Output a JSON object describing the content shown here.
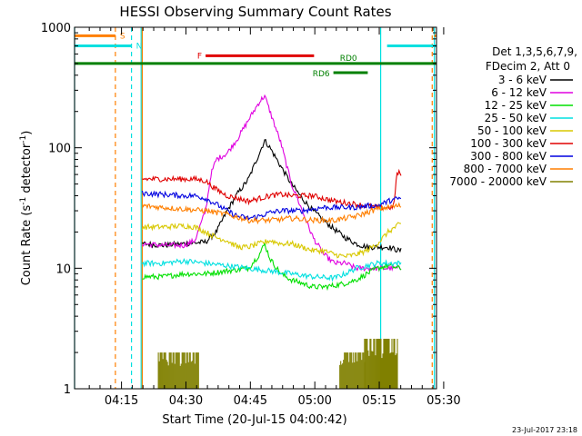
{
  "chart_data": {
    "type": "line",
    "title": "HESSI Observing Summary Count Rates",
    "xlabel": "Start Time (20-Jul-15 04:00:42)",
    "ylabel_main": "Count Rate (s",
    "ylabel_sup1": "-1",
    "ylabel_mid": " detector",
    "ylabel_sup2": "-1",
    "ylabel_end": ")",
    "yscale": "log",
    "ylim": [
      1,
      1000
    ],
    "xlim_minutes": [
      4.8,
      38.5
    ],
    "x_tick_labels": [
      "04:15",
      "04:30",
      "04:45",
      "05:00",
      "05:15",
      "05:30"
    ],
    "x_ticks_minutes": [
      9,
      15,
      21,
      27,
      33,
      39
    ],
    "y_tick_labels": [
      "1",
      "10",
      "100",
      "1000"
    ],
    "y_ticks": [
      1,
      10,
      100,
      1000
    ],
    "timestamp": "23-Jul-2017 23:18",
    "legend": {
      "header1": "Det 1,3,5,6,7,9,",
      "header2": "FDecim 2, Att 0",
      "entries": [
        {
          "label": "3 - 6 keV",
          "color": "#000000"
        },
        {
          "label": "6 - 12 keV",
          "color": "#e000e0"
        },
        {
          "label": "12 - 25 keV",
          "color": "#00e000"
        },
        {
          "label": "25 - 50 keV",
          "color": "#00e0e0"
        },
        {
          "label": "50 - 100 keV",
          "color": "#d8c800"
        },
        {
          "label": "100 - 300 keV",
          "color": "#e00000"
        },
        {
          "label": "300 - 800 keV",
          "color": "#0000e0"
        },
        {
          "label": "800 - 7000 keV",
          "color": "#ff7f00"
        },
        {
          "label": "7000 - 20000 keV",
          "color": "#808000"
        }
      ]
    },
    "flags": [
      {
        "label": "S",
        "color": "#ff7f00",
        "y": 850,
        "segments": [
          [
            4.8,
            8.6
          ],
          [
            38.3,
            38.5
          ]
        ]
      },
      {
        "label": "N",
        "color": "#00e0e0",
        "y": 700,
        "segments": [
          [
            4.8,
            10.1
          ],
          [
            33.9,
            38.5
          ]
        ]
      },
      {
        "label": "F",
        "color": "#e00000",
        "y": 580,
        "segments": [
          [
            17.0,
            27.1
          ]
        ]
      },
      {
        "label": "RD0",
        "color": "#008000",
        "y": 500,
        "segments": [
          [
            4.8,
            38.5
          ]
        ]
      },
      {
        "label": "RD6",
        "color": "#008000",
        "y": 420,
        "segments": [
          [
            28.9,
            32.1
          ]
        ]
      }
    ],
    "vertical_lines": [
      {
        "x": 4.8,
        "color": "#00e0e0",
        "dash": false
      },
      {
        "x": 8.6,
        "color": "#ff7f00",
        "dash": true
      },
      {
        "x": 10.1,
        "color": "#00e0e0",
        "dash": true
      },
      {
        "x": 11.0,
        "color": "#00e0e0",
        "dash": false
      },
      {
        "x": 11.1,
        "color": "#ff7f00",
        "dash": false
      },
      {
        "x": 33.3,
        "color": "#00e0e0",
        "dash": false
      },
      {
        "x": 38.1,
        "color": "#ff7f00",
        "dash": true
      },
      {
        "x": 38.3,
        "color": "#00e0e0",
        "dash": false
      }
    ],
    "series": [
      {
        "name": "3 - 6 keV",
        "color": "#000000",
        "x": [
          11.1,
          13,
          15,
          17,
          18,
          19,
          20,
          21,
          22,
          22.5,
          23,
          24,
          25,
          26,
          27,
          28,
          29,
          30,
          31,
          32,
          33,
          34,
          35,
          35.2
        ],
        "y": [
          16,
          15.5,
          16,
          16.5,
          20,
          30,
          42,
          55,
          90,
          115,
          100,
          70,
          50,
          38,
          30,
          25,
          21,
          18,
          16,
          15,
          15,
          15,
          14,
          14
        ]
      },
      {
        "name": "6 - 12 keV",
        "color": "#e000e0",
        "x": [
          11.1,
          13,
          15,
          16,
          17,
          17.5,
          18,
          19,
          20,
          21,
          22,
          22.5,
          23,
          24,
          25,
          26,
          27,
          28,
          29,
          30,
          31,
          32,
          33,
          34,
          35,
          35.2
        ],
        "y": [
          16,
          15.5,
          15.5,
          17,
          30,
          60,
          80,
          90,
          120,
          170,
          240,
          270,
          200,
          110,
          50,
          30,
          18,
          13,
          11,
          11,
          10,
          10,
          10,
          10,
          10,
          10
        ]
      },
      {
        "name": "12 - 25 keV",
        "color": "#00e000",
        "x": [
          11.1,
          13,
          15,
          17,
          19,
          21,
          22,
          22.5,
          23,
          24,
          25,
          26,
          27,
          28,
          29,
          30,
          31,
          32,
          33,
          34,
          35,
          35.2
        ],
        "y": [
          8.5,
          8.5,
          9,
          9,
          9.5,
          10,
          13,
          16,
          12,
          9,
          8,
          7.5,
          7,
          7,
          7.2,
          7.5,
          8,
          9,
          10,
          10.5,
          10,
          10
        ]
      },
      {
        "name": "25 - 50 keV",
        "color": "#00e0e0",
        "x": [
          11.1,
          13,
          15,
          17,
          19,
          21,
          23,
          25,
          27,
          29,
          30,
          31,
          32,
          33,
          34,
          35,
          35.2
        ],
        "y": [
          11,
          11,
          11.5,
          11,
          10.5,
          10,
          9.5,
          9,
          8.5,
          8.3,
          9,
          10,
          10.5,
          11,
          11,
          11,
          11
        ]
      },
      {
        "name": "50 - 100 keV",
        "color": "#d8c800",
        "x": [
          11.1,
          13,
          15,
          16,
          17,
          18,
          19,
          20,
          21,
          22,
          23,
          24,
          25,
          26,
          27,
          28,
          29,
          30,
          31,
          32,
          33,
          34,
          35,
          35.2
        ],
        "y": [
          22,
          22,
          22.5,
          22,
          20,
          18,
          17,
          15,
          15,
          16,
          17,
          16,
          16,
          15,
          14,
          14,
          13,
          12.5,
          13,
          14,
          16,
          20,
          23,
          23
        ]
      },
      {
        "name": "100 - 300 keV",
        "color": "#e00000",
        "x": [
          11.1,
          13,
          15,
          16,
          17,
          18,
          19,
          20,
          21,
          22,
          23,
          24,
          25,
          26,
          27,
          28,
          29,
          30,
          31,
          32,
          33,
          34,
          34.5,
          34.8,
          35,
          35.2
        ],
        "y": [
          55,
          55,
          55,
          55,
          53,
          45,
          40,
          38,
          36,
          38,
          40,
          41,
          40,
          40,
          40,
          38,
          36,
          35,
          34,
          33,
          32,
          32,
          32,
          60,
          62,
          60
        ]
      },
      {
        "name": "300 - 800 keV",
        "color": "#0000e0",
        "x": [
          11.1,
          13,
          15,
          16,
          17,
          18,
          19,
          20,
          21,
          22,
          23,
          24,
          25,
          26,
          27,
          28,
          29,
          30,
          31,
          32,
          33,
          34,
          35,
          35.2
        ],
        "y": [
          42,
          41,
          40,
          40,
          38,
          34,
          30,
          27,
          26,
          27,
          29,
          30,
          30,
          30,
          31,
          32,
          32,
          32,
          32,
          33,
          33,
          36,
          38,
          38
        ]
      },
      {
        "name": "800 - 7000 keV",
        "color": "#ff7f00",
        "x": [
          11.1,
          13,
          15,
          17,
          19,
          21,
          23,
          25,
          27,
          29,
          31,
          33,
          35,
          35.2
        ],
        "y": [
          33,
          32,
          31,
          30,
          28,
          25,
          25,
          26,
          25,
          25,
          27,
          31,
          33,
          33
        ]
      },
      {
        "name": "7000 - 20000 keV",
        "color": "#808000",
        "x": [],
        "y": []
      }
    ],
    "bursts": [
      {
        "x_start": 12.6,
        "x_end": 16.4,
        "y_low": 1.0,
        "y_high": 2.0
      },
      {
        "x_start": 29.5,
        "x_end": 31.8,
        "y_low": 1.0,
        "y_high": 2.0
      },
      {
        "x_start": 31.8,
        "x_end": 34.9,
        "y_low": 1.0,
        "y_high": 2.6
      }
    ]
  }
}
